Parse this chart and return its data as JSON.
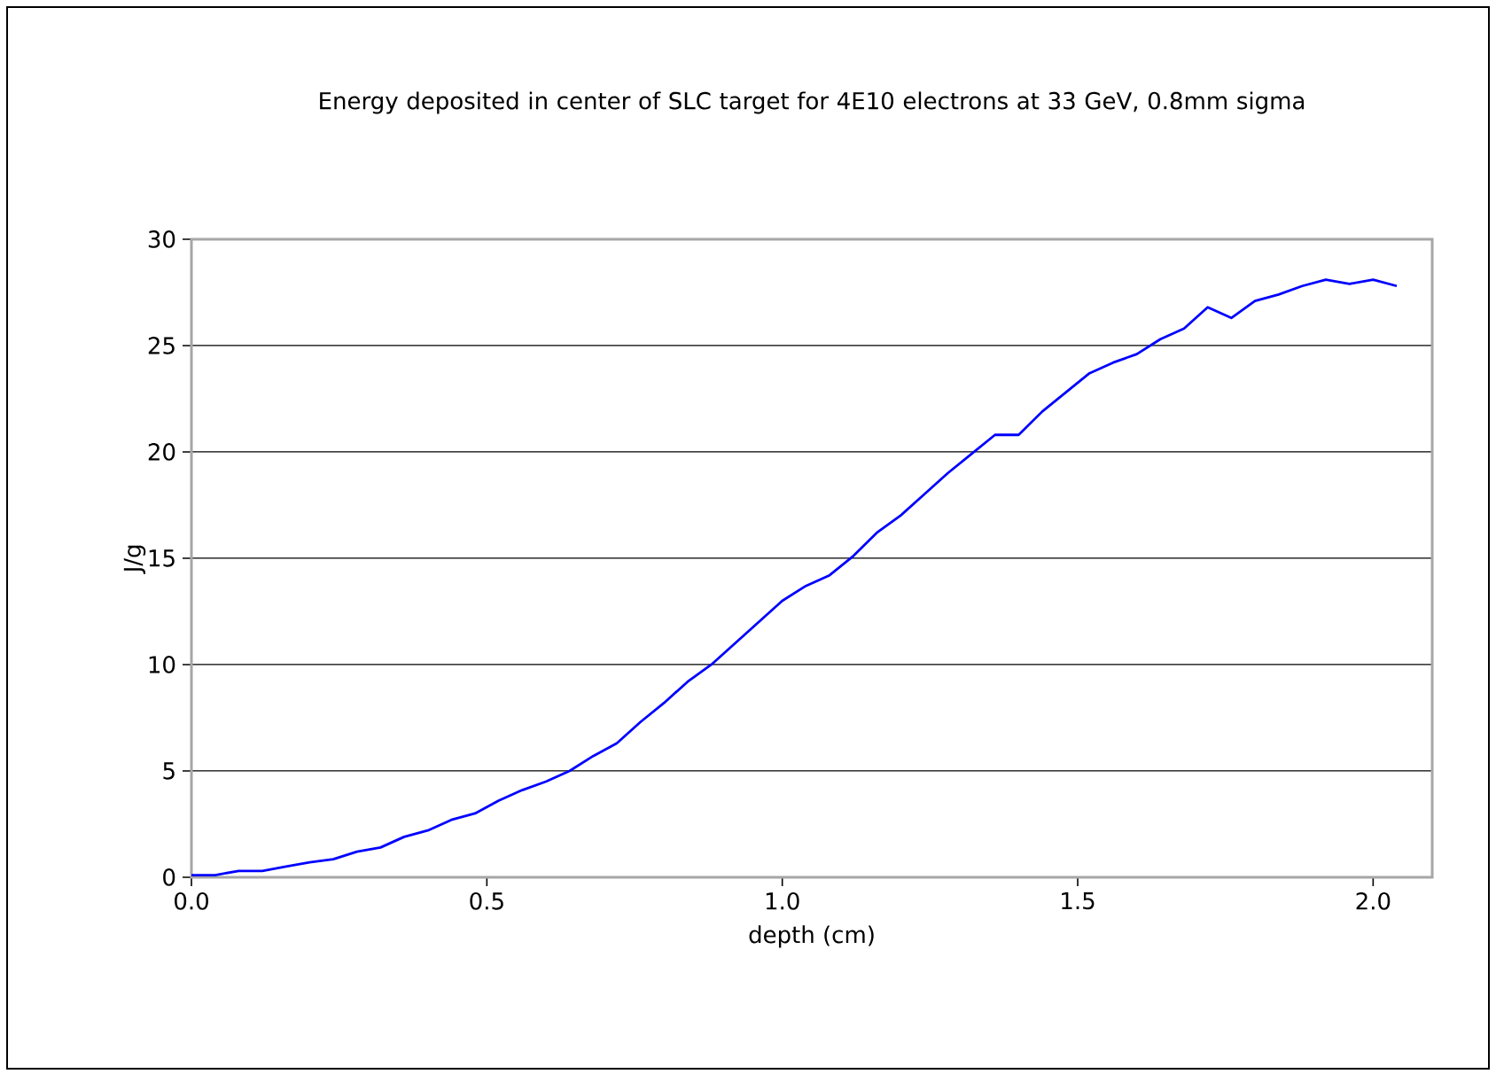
{
  "chart_data": {
    "type": "line",
    "title": "Energy deposited in center of SLC target for 4E10 electrons at 33 GeV, 0.8mm sigma",
    "xlabel": "depth (cm)",
    "ylabel": "J/g",
    "xlim": [
      0,
      2.1
    ],
    "xticks": [
      {
        "value": 0,
        "label": "0.0"
      },
      0.5,
      {
        "value": 1,
        "label": "1.0"
      },
      1.5,
      {
        "value": 2,
        "label": "2.0"
      }
    ],
    "ylim": [
      0,
      30
    ],
    "yticks": [
      0,
      5,
      10,
      15,
      20,
      25,
      30
    ],
    "grid": "y",
    "series": [
      {
        "color": "#0000ff",
        "x": [
          0,
          0.04,
          0.08,
          0.12,
          0.16,
          0.2,
          0.24,
          0.28,
          0.32,
          0.36,
          0.4,
          0.44,
          0.48,
          0.52,
          0.56,
          0.6,
          0.64,
          0.68,
          0.72,
          0.76,
          0.8,
          0.84,
          0.88,
          0.92,
          0.96,
          1.0,
          1.04,
          1.08,
          1.12,
          1.16,
          1.2,
          1.24,
          1.28,
          1.32,
          1.36,
          1.4,
          1.44,
          1.48,
          1.52,
          1.56,
          1.6,
          1.64,
          1.68,
          1.72,
          1.76,
          1.8,
          1.84,
          1.88,
          1.92,
          1.96,
          2.0,
          2.04
        ],
        "values": [
          0.1,
          0.1,
          0.3,
          0.3,
          0.5,
          0.7,
          0.85,
          1.2,
          1.4,
          1.9,
          2.2,
          2.7,
          3.0,
          3.6,
          4.1,
          4.5,
          5.0,
          5.7,
          6.3,
          7.3,
          8.2,
          9.2,
          10.0,
          11.0,
          12.0,
          13.0,
          13.7,
          14.2,
          15.1,
          16.2,
          17.0,
          18.0,
          19.0,
          19.9,
          20.8,
          20.8,
          21.9,
          22.8,
          23.7,
          24.2,
          24.6,
          25.3,
          25.8,
          26.8,
          26.3,
          27.1,
          27.4,
          27.8,
          28.1,
          27.9,
          28.1,
          27.8
        ]
      }
    ]
  }
}
